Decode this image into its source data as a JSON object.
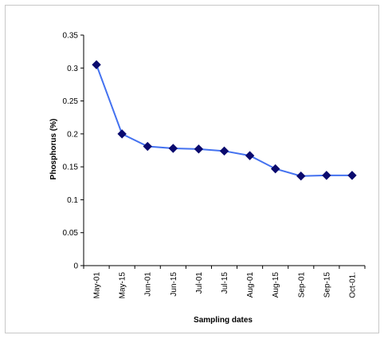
{
  "chart_data": {
    "type": "line",
    "title": "",
    "xlabel": "Sampling dates",
    "ylabel": "Phosphorus (%)",
    "categories": [
      "May-01",
      "May-15",
      "Jun-01",
      "Jun-15",
      "Jul-01",
      "Jul-15",
      "Aug-01",
      "Aug-15",
      "Sep-01",
      "Sep-15",
      "Oct-01."
    ],
    "series": [
      {
        "values": [
          0.305,
          0.2,
          0.181,
          0.178,
          0.177,
          0.174,
          0.167,
          0.147,
          0.136,
          0.137,
          0.137
        ]
      }
    ],
    "ylim": [
      0,
      0.35
    ],
    "yticks": [
      "0",
      "0.05",
      "0.1",
      "0.15",
      "0.2",
      "0.25",
      "0.3",
      "0.35"
    ],
    "grid": false,
    "legend": "none",
    "line_color": "#4472f0",
    "marker_color": "#0a0a6e",
    "marker": "diamond"
  }
}
